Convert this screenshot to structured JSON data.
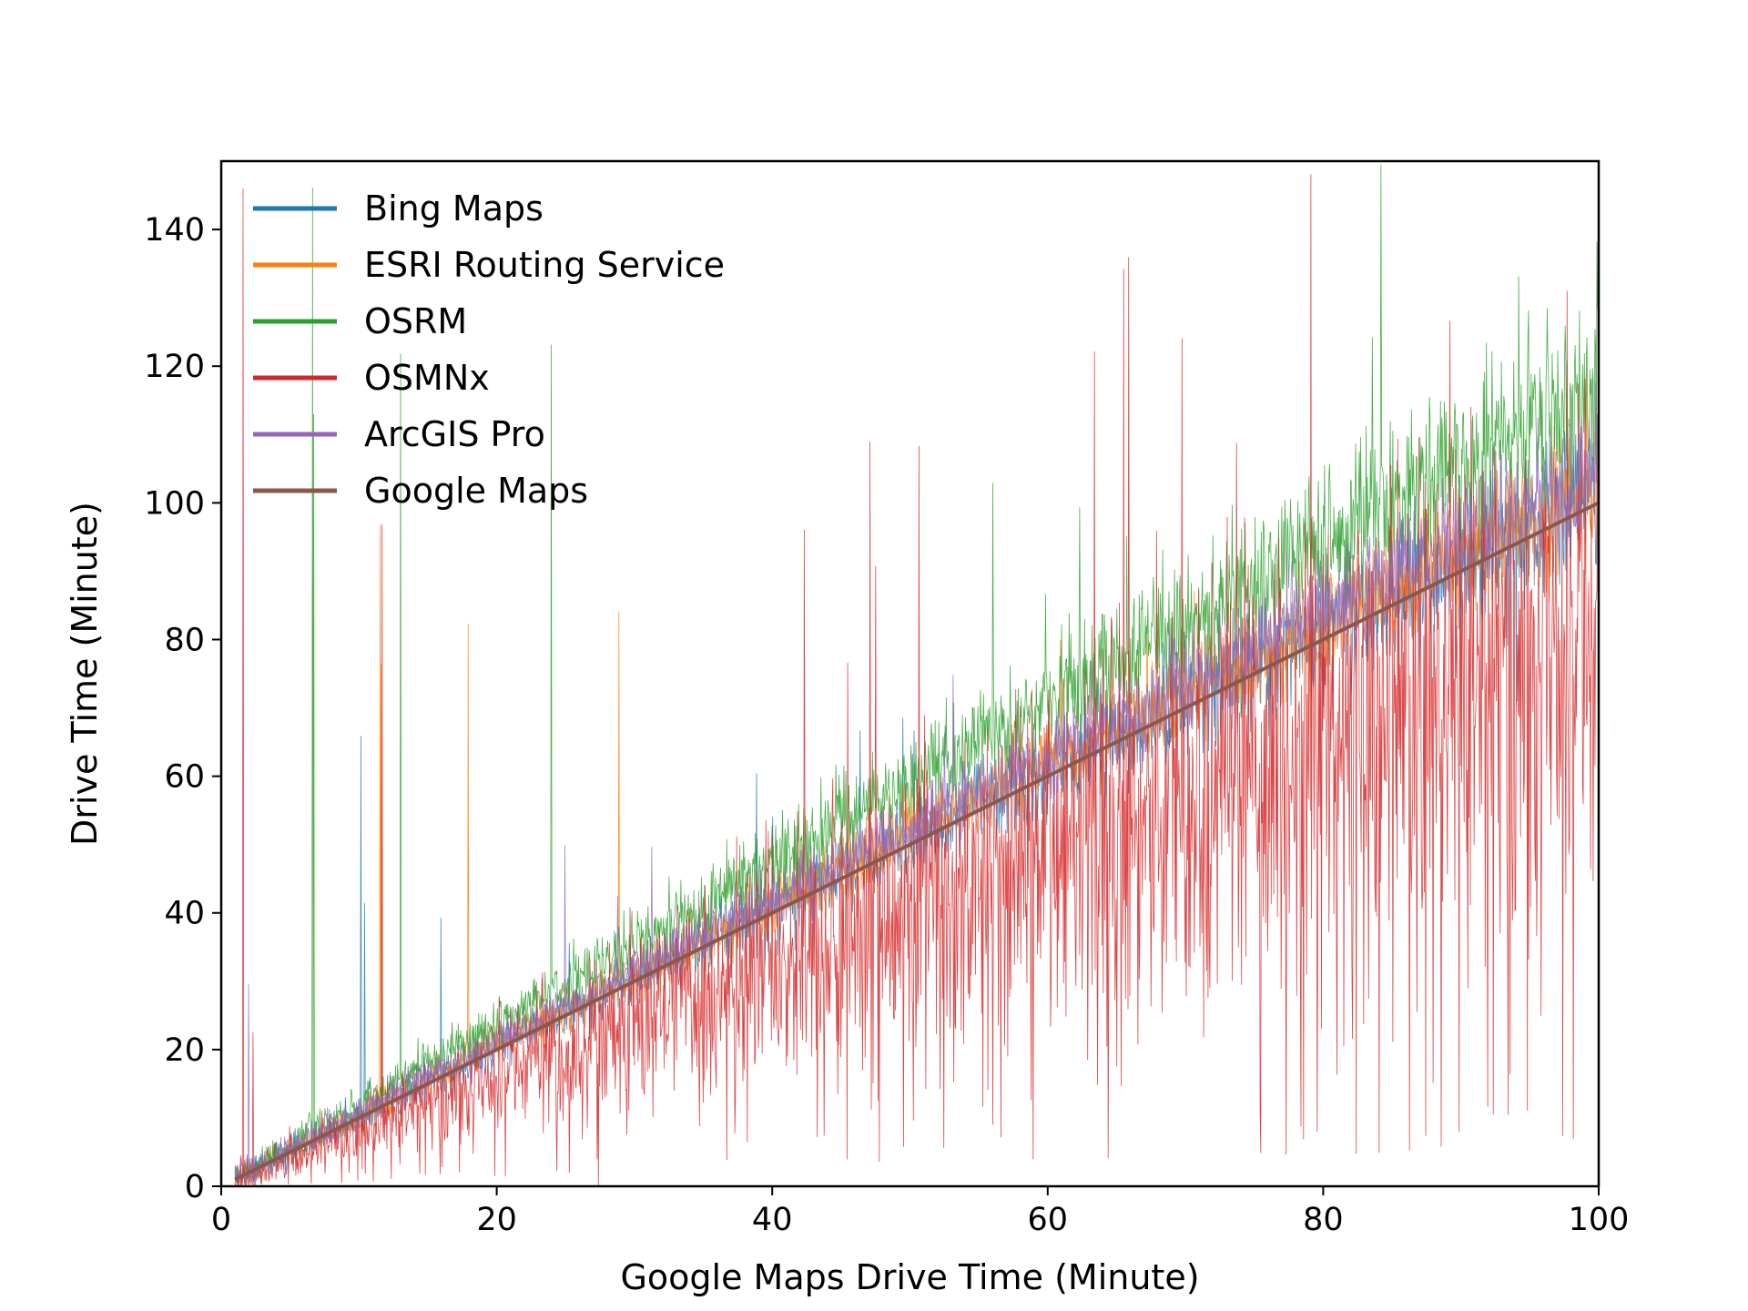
{
  "chart_data": {
    "type": "line",
    "xlabel": "Google Maps Drive Time (Minute)",
    "ylabel": "Drive Time (Minute)",
    "xlim": [
      0,
      100
    ],
    "ylim": [
      0,
      150
    ],
    "xticks": [
      0,
      20,
      40,
      60,
      80,
      100
    ],
    "yticks": [
      0,
      20,
      40,
      60,
      80,
      100,
      120,
      140
    ],
    "grid": false,
    "legend_position": "top-left",
    "x_range_of_data": [
      1,
      100
    ],
    "series": [
      {
        "name": "Bing Maps",
        "color": "#1f77b4",
        "trend_slope": 1.02,
        "spread": 0.1,
        "spike_max": 70
      },
      {
        "name": "ESRI Routing Service",
        "color": "#ff7f0e",
        "trend_slope": 1.03,
        "spread": 0.09,
        "spike_max": 99
      },
      {
        "name": "OSRM",
        "color": "#2ca02c",
        "trend_slope": 1.18,
        "spread": 0.12,
        "spike_max": 150
      },
      {
        "name": "OSMNx",
        "color": "#d62728",
        "trend_slope": 0.82,
        "spread": 0.35,
        "spike_max": 150
      },
      {
        "name": "ArcGIS Pro",
        "color": "#9467bd",
        "trend_slope": 1.05,
        "spread": 0.08,
        "spike_max": 75
      },
      {
        "name": "Google Maps",
        "color": "#8c564b",
        "trend_slope": 1.0,
        "spread": 0.0,
        "values_at_x": [
          [
            1,
            1
          ],
          [
            100,
            100
          ]
        ]
      }
    ]
  }
}
